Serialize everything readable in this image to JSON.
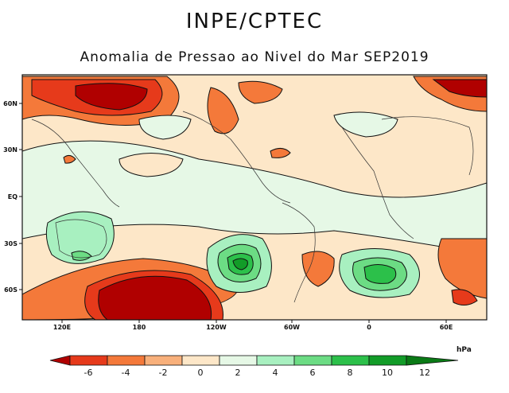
{
  "header": {
    "agency": "INPE/CPTEC",
    "title": "Anomalia de Pressao ao Nivel do Mar SEP2019"
  },
  "map": {
    "lat_ticks": [
      "60N",
      "30N",
      "EQ",
      "30S",
      "60S"
    ],
    "lon_ticks": [
      "120E",
      "180",
      "120W",
      "60W",
      "0",
      "60E"
    ]
  },
  "colorbar": {
    "unit": "hPa",
    "levels": [
      "-6",
      "-4",
      "-2",
      "0",
      "2",
      "4",
      "6",
      "8",
      "10",
      "12"
    ],
    "colors": [
      "#b00000",
      "#e63a1b",
      "#f4793a",
      "#f8b07b",
      "#fde7c8",
      "#e6f8e6",
      "#a8f0c0",
      "#6cdc84",
      "#2cc04a",
      "#129c28",
      "#0a7a16"
    ]
  }
}
